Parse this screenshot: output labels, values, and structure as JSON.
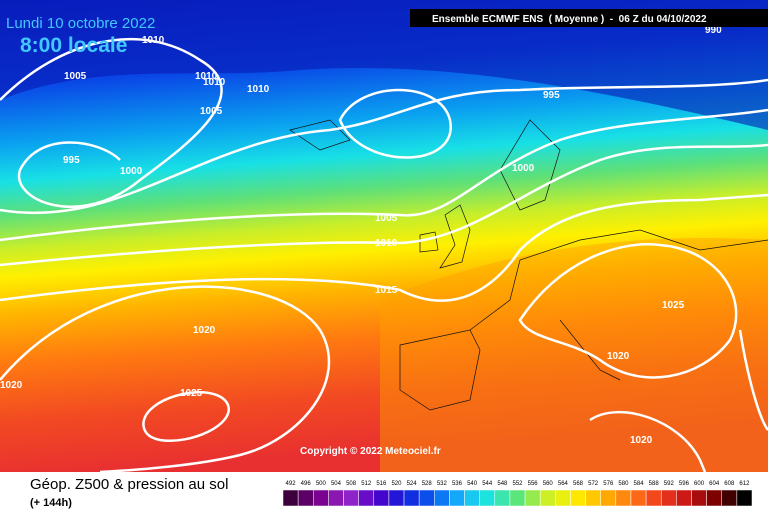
{
  "title": "Lundi 10 octobre 2022",
  "subtitle": "8:00 locale",
  "header": "Ensemble ECMWF ENS  ( Moyenne )  -  06 Z du 04/10/2022",
  "copyright": "Copyright © 2022 Meteociel.fr",
  "isobars": [
    "1010",
    "1005",
    "1010",
    "1010",
    "1010",
    "1005",
    "995",
    "1000",
    "995",
    "1000",
    "1005",
    "1010",
    "1015",
    "1020",
    "1020",
    "1025",
    "1025",
    "1020",
    "1020",
    "990"
  ],
  "legend": {
    "title": "Géop. Z500 & pression au sol",
    "subtitle": "(+ 144h)",
    "levels": [
      492,
      496,
      500,
      504,
      508,
      512,
      516,
      520,
      524,
      528,
      532,
      536,
      540,
      544,
      548,
      552,
      556,
      560,
      564,
      568,
      572,
      576,
      580,
      584,
      588,
      592,
      596,
      600,
      604,
      608,
      612
    ]
  }
}
